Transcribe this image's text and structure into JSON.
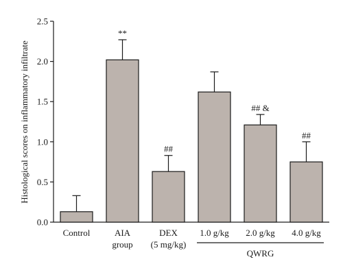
{
  "chart_data": {
    "type": "bar",
    "ylabel": "Histological scores on inflammatory infiltrate",
    "ylim": [
      0,
      2.5
    ],
    "yticks": [
      "0.0",
      "0.5",
      "1.0",
      "1.5",
      "2.0",
      "2.5"
    ],
    "bar_color": "#bcb3ad",
    "categories": [
      {
        "lines": [
          "Control"
        ]
      },
      {
        "lines": [
          "AIA",
          "group"
        ]
      },
      {
        "lines": [
          "DEX",
          "(5 mg/kg)"
        ]
      },
      {
        "lines": [
          "1.0 g/kg"
        ]
      },
      {
        "lines": [
          "2.0 g/kg"
        ]
      },
      {
        "lines": [
          "4.0 g/kg"
        ]
      }
    ],
    "values": [
      0.13,
      2.02,
      0.63,
      1.62,
      1.21,
      0.75
    ],
    "errors": [
      0.2,
      0.25,
      0.2,
      0.25,
      0.13,
      0.25
    ],
    "annotations": [
      "",
      "**",
      "##",
      "",
      "## &",
      "##"
    ],
    "group_label": {
      "text": "QWRG",
      "from_index": 3,
      "to_index": 5
    }
  }
}
